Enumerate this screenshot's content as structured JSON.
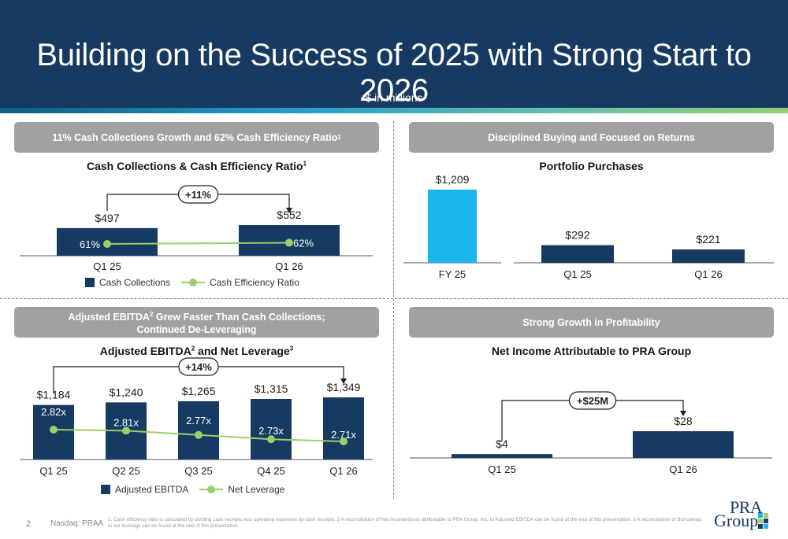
{
  "header": {
    "title": "Building on the Success of 2025 with Strong Start to 2026",
    "subtitle": "$ in millions"
  },
  "panels": {
    "top_left": {
      "pill": "11% Cash Collections Growth and 62% Cash Efficiency Ratio",
      "pill_sup": "1",
      "title": "Cash Collections & Cash Efficiency Ratio",
      "title_sup": "1",
      "growth_label": "+11%",
      "legend_bar": "Cash Collections",
      "legend_line": "Cash Efficiency Ratio"
    },
    "top_right": {
      "pill": "Disciplined Buying and Focused on Returns",
      "title": "Portfolio Purchases"
    },
    "bottom_left": {
      "pill_line1": "Adjusted EBITDA",
      "pill_line1_sup": "2",
      "pill_line1_rest": " Grew Faster Than Cash Collections;",
      "pill_line2": "Continued De-Leveraging",
      "title_a": "Adjusted EBITDA",
      "title_sup_a": "2",
      "title_b": " and Net Leverage",
      "title_sup_b": "3",
      "growth_label": "+14%",
      "legend_bar": "Adjusted EBITDA",
      "legend_line": "Net Leverage"
    },
    "bottom_right": {
      "pill": "Strong Growth in Profitability",
      "title": "Net Income Attributable to PRA Group",
      "growth_label": "+$25M"
    }
  },
  "chart_data": [
    {
      "type": "bar",
      "title": "Cash Collections & Cash Efficiency Ratio",
      "categories": [
        "Q1 25",
        "Q1 26"
      ],
      "series": [
        {
          "name": "Cash Collections",
          "values": [
            497,
            552
          ],
          "labels": [
            "$497",
            "$552"
          ]
        },
        {
          "name": "Cash Efficiency Ratio",
          "type": "line",
          "values": [
            61,
            62
          ],
          "labels": [
            "61%",
            "62%"
          ]
        }
      ],
      "annotation": "+11%"
    },
    {
      "type": "bar",
      "title": "Portfolio Purchases",
      "categories": [
        "FY 25",
        "Q1 25",
        "Q1 26"
      ],
      "values": [
        1209,
        292,
        221
      ],
      "labels": [
        "$1,209",
        "$292",
        "$221"
      ],
      "colors": [
        "#19b6ec",
        "#163a61",
        "#163a61"
      ]
    },
    {
      "type": "bar",
      "title": "Adjusted EBITDA and Net Leverage",
      "categories": [
        "Q1 25",
        "Q2 25",
        "Q3 25",
        "Q4 25",
        "Q1 26"
      ],
      "series": [
        {
          "name": "Adjusted EBITDA",
          "values": [
            1184,
            1240,
            1265,
            1315,
            1349
          ],
          "labels": [
            "$1,184",
            "$1,240",
            "$1,265",
            "$1,315",
            "$1,349"
          ]
        },
        {
          "name": "Net Leverage",
          "type": "line",
          "values": [
            2.82,
            2.81,
            2.77,
            2.73,
            2.71
          ],
          "labels": [
            "2.82x",
            "2.81x",
            "2.77x",
            "2.73x",
            "2.71x"
          ]
        }
      ],
      "annotation": "+14%"
    },
    {
      "type": "bar",
      "title": "Net Income Attributable to PRA Group",
      "categories": [
        "Q1 25",
        "Q1 26"
      ],
      "values": [
        4,
        28
      ],
      "labels": [
        "$4",
        "$28"
      ],
      "annotation": "+$25M"
    }
  ],
  "colors": {
    "navy": "#163a61",
    "cyan": "#19b6ec",
    "green": "#9bcf6c",
    "pill_gray": "#a0a1a3"
  },
  "footer": {
    "page": "2",
    "ticker": "Nasdaq: PRAA",
    "footnote": "1. Cash efficiency ratio is calculated by dividing cash receipts less operating expenses by cash receipts. 2 A reconciliation of Net income/(loss) attributable to PRA Group, Inc. to Adjusted EBITDA can be found at the end of this presentation. 3 A reconciliation of Borrowings to net leverage can be found at the end of this presentation.",
    "logo_line1": "PRA",
    "logo_line2": "Group"
  }
}
